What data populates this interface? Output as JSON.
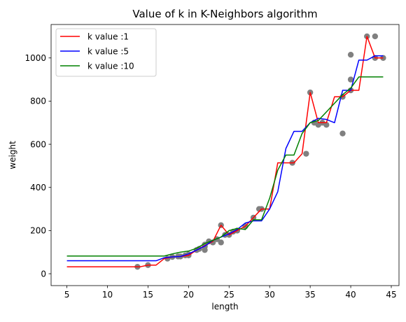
{
  "chart_data": {
    "type": "line",
    "title": "Value of k in K-Neighbors algorithm",
    "xlabel": "length",
    "ylabel": "weight",
    "xlim": [
      3.05,
      45.95
    ],
    "ylim": [
      -55,
      1155
    ],
    "xticks": [
      5,
      10,
      15,
      20,
      25,
      30,
      35,
      40,
      45
    ],
    "yticks": [
      0,
      200,
      400,
      600,
      800,
      1000
    ],
    "grid": false,
    "legend_position": "top-left",
    "scatter": {
      "color": "#808080",
      "points": [
        [
          13.7,
          32
        ],
        [
          15,
          40
        ],
        [
          17.4,
          70
        ],
        [
          18,
          78
        ],
        [
          18.7,
          80
        ],
        [
          19,
          80
        ],
        [
          19.6,
          85
        ],
        [
          20,
          85
        ],
        [
          20,
          90
        ],
        [
          21,
          110
        ],
        [
          21.3,
          115
        ],
        [
          22,
          110
        ],
        [
          22,
          125
        ],
        [
          22,
          130
        ],
        [
          22,
          135
        ],
        [
          22.5,
          150
        ],
        [
          23,
          145
        ],
        [
          23.5,
          160
        ],
        [
          24,
          145
        ],
        [
          24,
          225
        ],
        [
          24.5,
          180
        ],
        [
          25,
          180
        ],
        [
          25.5,
          195
        ],
        [
          26,
          200
        ],
        [
          27,
          220
        ],
        [
          28,
          260
        ],
        [
          28.7,
          300
        ],
        [
          29,
          300
        ],
        [
          32.8,
          514
        ],
        [
          34.5,
          556
        ],
        [
          35,
          840
        ],
        [
          35.5,
          700
        ],
        [
          36,
          690
        ],
        [
          36.5,
          700
        ],
        [
          37,
          690
        ],
        [
          39,
          650
        ],
        [
          39,
          820
        ],
        [
          40,
          900
        ],
        [
          40,
          1015
        ],
        [
          40,
          850
        ],
        [
          42,
          1100
        ],
        [
          43,
          1000
        ],
        [
          43,
          1100
        ],
        [
          44,
          1000
        ]
      ]
    },
    "series": [
      {
        "name": "k value :1",
        "color": "#ff0000",
        "x": [
          5,
          14,
          15,
          16,
          17,
          18,
          19,
          20,
          21,
          22,
          23,
          24,
          25,
          26,
          27,
          28,
          29,
          30,
          31,
          32,
          33,
          34,
          35,
          36,
          37,
          38,
          39,
          40,
          41,
          42,
          43,
          44
        ],
        "y": [
          32,
          32,
          40,
          40,
          70,
          78,
          80,
          85,
          110,
          130,
          150,
          225,
          180,
          200,
          220,
          260,
          300,
          300,
          514,
          514,
          514,
          556,
          840,
          700,
          700,
          820,
          820,
          850,
          850,
          1100,
          1000,
          1000
        ]
      },
      {
        "name": "k value :5",
        "color": "#0000ff",
        "x": [
          5,
          16,
          17,
          18,
          19,
          20,
          21,
          22,
          23,
          24,
          25,
          26,
          27,
          28,
          29,
          30,
          31,
          32,
          33,
          34,
          35,
          36,
          37,
          38,
          39,
          40,
          41,
          42,
          43,
          44
        ],
        "y": [
          60,
          60,
          74,
          78,
          80,
          92,
          110,
          128,
          155,
          170,
          185,
          205,
          235,
          245,
          245,
          300,
          380,
          580,
          660,
          660,
          700,
          720,
          715,
          700,
          850,
          850,
          990,
          990,
          1010,
          1010
        ]
      },
      {
        "name": "k value :10",
        "color": "#008000",
        "x": [
          5,
          17,
          18,
          19,
          20,
          21,
          22,
          23,
          24,
          25,
          26,
          27,
          28,
          29,
          30,
          31,
          32,
          33,
          34,
          35,
          36,
          37,
          38,
          39,
          40,
          41,
          42,
          43,
          44
        ],
        "y": [
          82,
          82,
          92,
          100,
          105,
          118,
          140,
          155,
          170,
          200,
          210,
          205,
          250,
          250,
          350,
          480,
          550,
          550,
          650,
          700,
          710,
          750,
          790,
          830,
          860,
          912,
          912,
          912,
          912
        ]
      }
    ]
  }
}
